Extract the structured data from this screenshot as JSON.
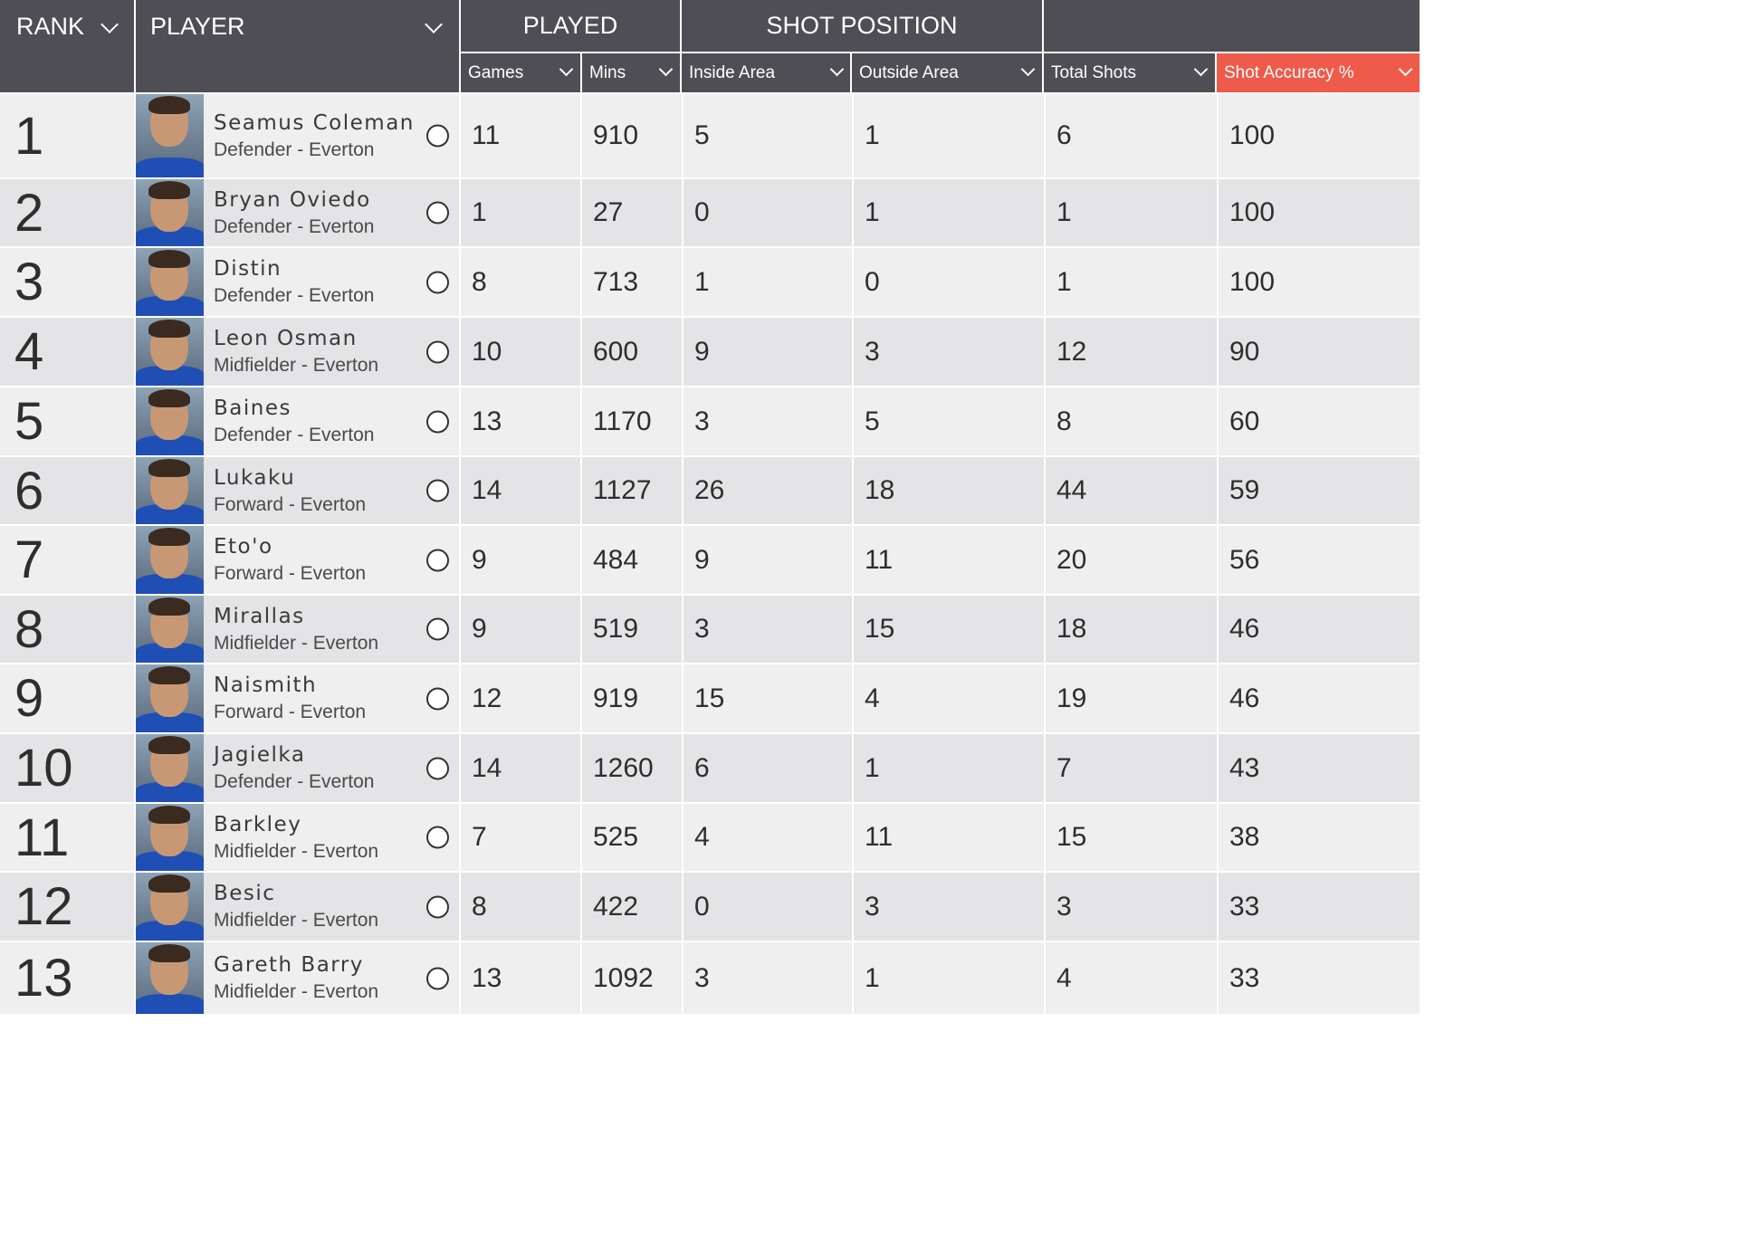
{
  "header": {
    "rank": "RANK",
    "player": "PLAYER",
    "played": "PLAYED",
    "shot_position": "SHOT POSITION",
    "columns": {
      "games": "Games",
      "mins": "Mins",
      "inside_area": "Inside Area",
      "outside_area": "Outside Area",
      "total_shots": "Total Shots",
      "shot_accuracy": "Shot Accuracy %"
    }
  },
  "colors": {
    "header_bg": "#504e55",
    "active_sort": "#ef5b4b"
  },
  "rows": [
    {
      "rank": "1",
      "name": "Seamus Coleman",
      "role": "Defender - Everton",
      "games": "11",
      "mins": "910",
      "inside": "5",
      "outside": "1",
      "total": "6",
      "accuracy": "100"
    },
    {
      "rank": "2",
      "name": "Bryan Oviedo",
      "role": "Defender - Everton",
      "games": "1",
      "mins": "27",
      "inside": "0",
      "outside": "1",
      "total": "1",
      "accuracy": "100"
    },
    {
      "rank": "3",
      "name": "Distin",
      "role": "Defender - Everton",
      "games": "8",
      "mins": "713",
      "inside": "1",
      "outside": "0",
      "total": "1",
      "accuracy": "100"
    },
    {
      "rank": "4",
      "name": "Leon Osman",
      "role": "Midfielder - Everton",
      "games": "10",
      "mins": "600",
      "inside": "9",
      "outside": "3",
      "total": "12",
      "accuracy": "90"
    },
    {
      "rank": "5",
      "name": "Baines",
      "role": "Defender - Everton",
      "games": "13",
      "mins": "1170",
      "inside": "3",
      "outside": "5",
      "total": "8",
      "accuracy": "60"
    },
    {
      "rank": "6",
      "name": "Lukaku",
      "role": "Forward - Everton",
      "games": "14",
      "mins": "1127",
      "inside": "26",
      "outside": "18",
      "total": "44",
      "accuracy": "59"
    },
    {
      "rank": "7",
      "name": "Eto'o",
      "role": "Forward - Everton",
      "games": "9",
      "mins": "484",
      "inside": "9",
      "outside": "11",
      "total": "20",
      "accuracy": "56"
    },
    {
      "rank": "8",
      "name": "Mirallas",
      "role": "Midfielder - Everton",
      "games": "9",
      "mins": "519",
      "inside": "3",
      "outside": "15",
      "total": "18",
      "accuracy": "46"
    },
    {
      "rank": "9",
      "name": "Naismith",
      "role": "Forward - Everton",
      "games": "12",
      "mins": "919",
      "inside": "15",
      "outside": "4",
      "total": "19",
      "accuracy": "46"
    },
    {
      "rank": "10",
      "name": "Jagielka",
      "role": "Defender - Everton",
      "games": "14",
      "mins": "1260",
      "inside": "6",
      "outside": "1",
      "total": "7",
      "accuracy": "43"
    },
    {
      "rank": "11",
      "name": "Barkley",
      "role": "Midfielder - Everton",
      "games": "7",
      "mins": "525",
      "inside": "4",
      "outside": "11",
      "total": "15",
      "accuracy": "38"
    },
    {
      "rank": "12",
      "name": "Besic",
      "role": "Midfielder - Everton",
      "games": "8",
      "mins": "422",
      "inside": "0",
      "outside": "3",
      "total": "3",
      "accuracy": "33"
    },
    {
      "rank": "13",
      "name": "Gareth Barry",
      "role": "Midfielder - Everton",
      "games": "13",
      "mins": "1092",
      "inside": "3",
      "outside": "1",
      "total": "4",
      "accuracy": "33"
    }
  ]
}
